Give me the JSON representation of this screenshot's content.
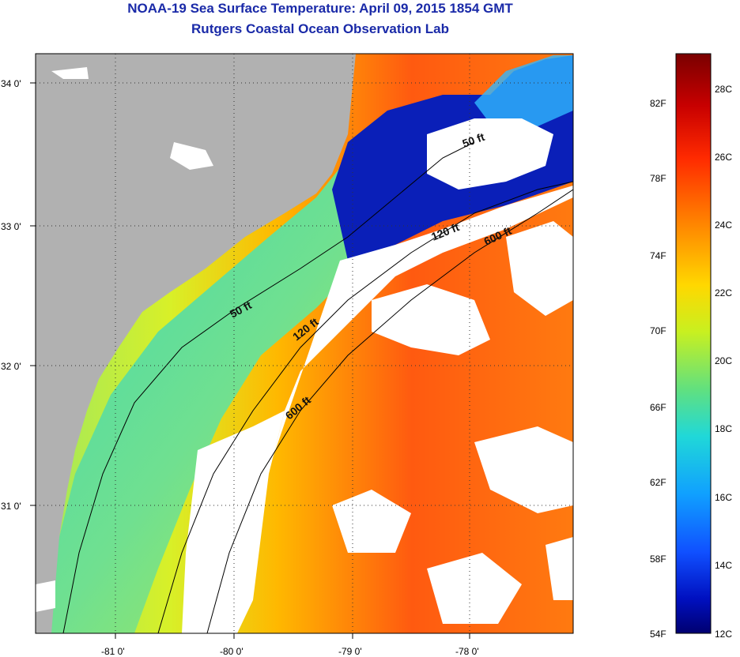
{
  "title": "NOAA-19 Sea Surface Temperature:  April 09, 2015 1854 GMT",
  "subtitle": "Rutgers Coastal Ocean Observation Lab",
  "map": {
    "x_ticks": [
      "-81 0'",
      "-80 0'",
      "-79 0'",
      "-78 0'"
    ],
    "y_ticks": [
      "34 0'",
      "33 0'",
      "32 0'",
      "31 0'"
    ],
    "contour_labels": [
      "50 ft",
      "120 ft",
      "600 ft",
      "50 ft",
      "120 ft",
      "600 ft"
    ],
    "colors": {
      "land": "#b1b1b1",
      "cloud": "#ffffff",
      "cold": "#0a1fb8",
      "warm": "#ec5a10"
    }
  },
  "colorbar": {
    "f_labels": [
      "82F",
      "78F",
      "74F",
      "70F",
      "66F",
      "62F",
      "58F",
      "54F"
    ],
    "c_labels": [
      "28C",
      "26C",
      "24C",
      "22C",
      "20C",
      "18C",
      "16C",
      "14C",
      "12C"
    ],
    "stops": [
      "#7a0000",
      "#c80000",
      "#ff2a00",
      "#ff8a00",
      "#ffd800",
      "#c8f020",
      "#60e080",
      "#20d8d8",
      "#10a0ff",
      "#1050ff",
      "#0010c0",
      "#000070"
    ]
  }
}
